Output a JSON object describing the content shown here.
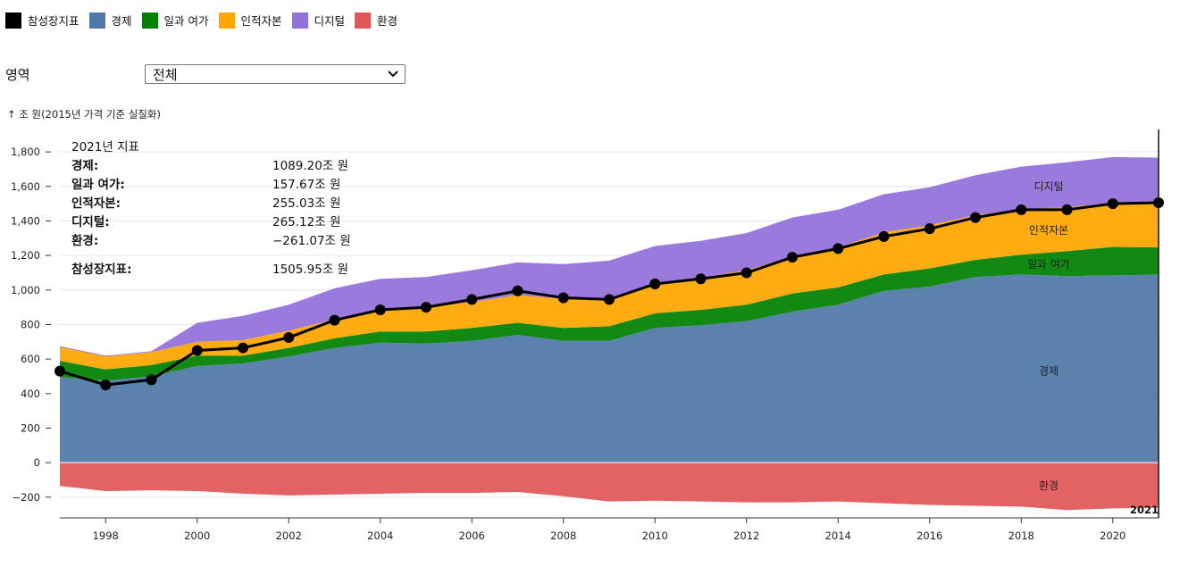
{
  "legend": [
    {
      "label": "참성장지표",
      "color": "#000000"
    },
    {
      "label": "경제",
      "color": "#4e79a7"
    },
    {
      "label": "일과 여가",
      "color": "#008000"
    },
    {
      "label": "인적자본",
      "color": "#ffa500"
    },
    {
      "label": "디지털",
      "color": "#9370db"
    },
    {
      "label": "환경",
      "color": "#e15759"
    }
  ],
  "filter": {
    "label": "영역",
    "selected": "전체"
  },
  "chart_data": {
    "type": "area",
    "ylabel": "↑ 조 원(2015년 가격 기준 실질화)",
    "ylim": [
      -320,
      1930
    ],
    "yticks": [
      -200,
      0,
      200,
      400,
      600,
      800,
      1000,
      1200,
      1400,
      1600,
      1800
    ],
    "ytick_labels": [
      "−200",
      "0",
      "200",
      "400",
      "600",
      "800",
      "1,000",
      "1,200",
      "1,400",
      "1,600",
      "1,800"
    ],
    "xlim": [
      1997,
      2021
    ],
    "xticks": [
      1998,
      2000,
      2002,
      2004,
      2006,
      2008,
      2010,
      2012,
      2014,
      2016,
      2018,
      2020
    ],
    "x": [
      1997,
      1998,
      1999,
      2000,
      2001,
      2002,
      2003,
      2004,
      2005,
      2006,
      2007,
      2008,
      2009,
      2010,
      2011,
      2012,
      2013,
      2014,
      2015,
      2016,
      2017,
      2018,
      2019,
      2020,
      2021
    ],
    "series": [
      {
        "name": "경제",
        "color": "#4e79a7",
        "values": [
          495,
          475,
          500,
          560,
          575,
          615,
          665,
          695,
          690,
          705,
          740,
          705,
          705,
          780,
          795,
          820,
          875,
          915,
          995,
          1020,
          1075,
          1090,
          1080,
          1085,
          1089.2
        ]
      },
      {
        "name": "일과 여가",
        "color": "#008000",
        "values": [
          95,
          65,
          65,
          60,
          45,
          50,
          55,
          65,
          70,
          75,
          70,
          75,
          85,
          85,
          90,
          95,
          105,
          100,
          95,
          105,
          100,
          115,
          145,
          165,
          157.67
        ]
      },
      {
        "name": "인적자본",
        "color": "#ffa500",
        "values": [
          80,
          75,
          75,
          80,
          90,
          100,
          110,
          130,
          140,
          150,
          160,
          170,
          160,
          165,
          185,
          200,
          215,
          230,
          245,
          250,
          260,
          260,
          255,
          255,
          255.03
        ]
      },
      {
        "name": "디지털",
        "color": "#9370db",
        "values": [
          5,
          5,
          5,
          110,
          140,
          150,
          180,
          175,
          175,
          185,
          190,
          200,
          220,
          225,
          215,
          215,
          225,
          220,
          220,
          220,
          230,
          250,
          260,
          265,
          265.12
        ]
      },
      {
        "name": "환경",
        "color": "#e15759",
        "values": [
          -135,
          -165,
          -160,
          -165,
          -180,
          -190,
          -185,
          -180,
          -175,
          -175,
          -170,
          -195,
          -225,
          -220,
          -225,
          -230,
          -230,
          -225,
          -235,
          -245,
          -250,
          -255,
          -275,
          -265,
          -261.07
        ]
      }
    ],
    "total": {
      "name": "참성장지표",
      "color": "#000000",
      "values": [
        530,
        450,
        480,
        650,
        665,
        725,
        825,
        885,
        900,
        945,
        995,
        955,
        945,
        1035,
        1065,
        1100,
        1190,
        1240,
        1310,
        1355,
        1420,
        1465,
        1465,
        1500,
        1505.95
      ]
    },
    "tooltip": {
      "title": "2021년 지표",
      "rows": [
        {
          "label": "경제:",
          "value": "1089.20조 원"
        },
        {
          "label": "일과 여가:",
          "value": "157.67조 원"
        },
        {
          "label": "인적자본:",
          "value": "255.03조 원"
        },
        {
          "label": "디지털:",
          "value": "265.12조 원"
        },
        {
          "label": "환경:",
          "value": "−261.07조 원"
        }
      ],
      "total_label": "참성장지표:",
      "total_value": "1505.95조 원"
    },
    "focus_label": "2021",
    "series_labels": [
      {
        "text": "디지털",
        "y": 1600
      },
      {
        "text": "인적자본",
        "y": 1345
      },
      {
        "text": "일과 여가",
        "y": 1150
      },
      {
        "text": "경제",
        "y": 530
      },
      {
        "text": "환경",
        "y": -135
      }
    ]
  }
}
